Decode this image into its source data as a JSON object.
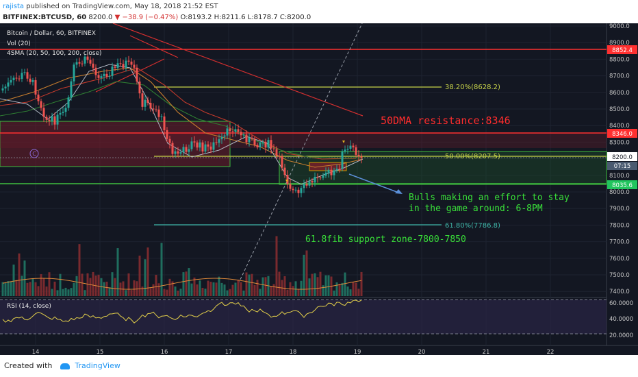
{
  "header": {
    "user": "rajista",
    "published": "published on TradingView.com, May 18, 2018 21:52 EST",
    "symbol": "BITFINEX:BTCUSD, 60",
    "price": "8200.0",
    "change": "▼ −38.9 (−0.47%)",
    "ohlc": "O:8193.2 H:8211.6 L:8178.7 C:8200.0"
  },
  "chart": {
    "title": "Bitcoin / Dollar, 60, BITFINEX",
    "vol_label": "Vol (20)",
    "sma_label": "4SMA (20, 50, 100, 200, close)",
    "rsi_label": "RSI (14, close)",
    "annotations": {
      "fib382": "38.20%(8628.2)",
      "fib50": "50.00%(8207.5)",
      "fib618": "61.80%(7786.8)",
      "dma": "50DMA resistance:8346",
      "bulls1": "Bulls making an effort to stay",
      "bulls2": "in the game around: 6-8PM",
      "fibzone": "61.8fib support zone-7800-7850",
      "marker_c": "C"
    },
    "price_axis": [
      "9000.0",
      "8900.0",
      "8800.0",
      "8700.0",
      "8600.0",
      "8500.0",
      "8400.0",
      "8300.0",
      "8200.0",
      "8100.0",
      "8000.0",
      "7900.0",
      "7800.0",
      "7700.0",
      "7600.0",
      "7500.0",
      "7400.0"
    ],
    "price_tags": {
      "red_top": "8852.4",
      "red_mid": "8346.0",
      "current": "8200.0",
      "countdown": "07:15",
      "green": "8035.6"
    },
    "rsi_axis": [
      "60.0000",
      "40.0000",
      "20.0000"
    ],
    "time_axis": [
      "14",
      "15",
      "16",
      "17",
      "18",
      "19",
      "20",
      "21",
      "22"
    ],
    "colors": {
      "background": "#131722",
      "up": "#26a69a",
      "down": "#ef5350",
      "fib_yellow": "#c8d44a",
      "resistance_red": "#ff3030",
      "support_green": "#22c55e",
      "rsi_line": "#e6d24a"
    }
  },
  "footer": {
    "created_with": "Created with",
    "brand": "TradingView"
  }
}
